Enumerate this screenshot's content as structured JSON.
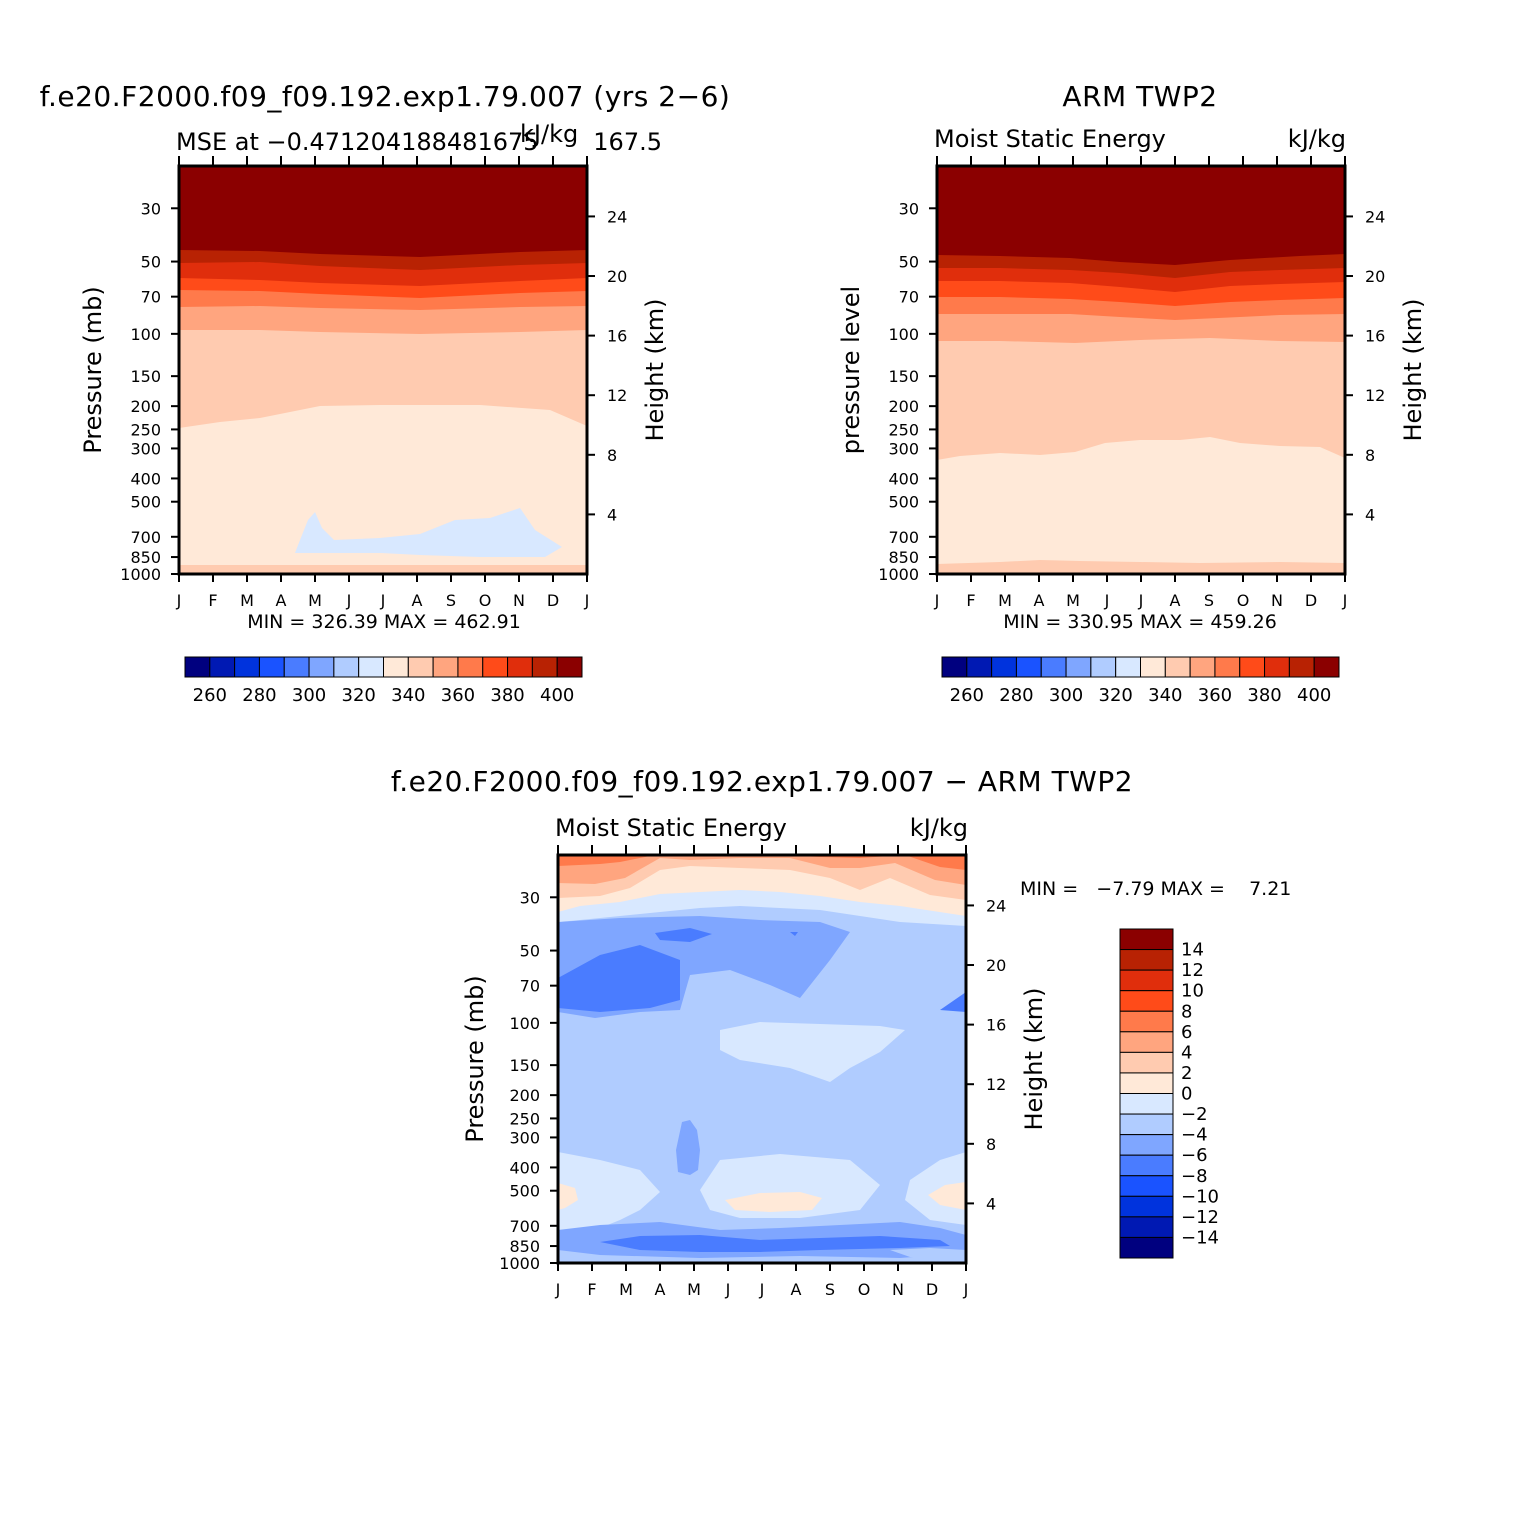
{
  "panels": [
    {
      "id": "model",
      "title": "f.e20.F2000.f09_f09.192.exp1.79.007 (yrs 2−6)",
      "subtitle_left": "MSE at −0.471204188481675",
      "subtitle_overlap": "kJ/kg",
      "subtitle_right": "167.5",
      "ylabel": "Pressure (mb)",
      "y2label": "Height (km)",
      "minmax_text": "MIN = 326.39 MAX = 462.91"
    },
    {
      "id": "obs",
      "title": "ARM TWP2",
      "subtitle_left": "Moist Static Energy",
      "subtitle_right": "kJ/kg",
      "ylabel": "pressure level",
      "y2label": "Height (km)",
      "minmax_text": "MIN = 330.95 MAX = 459.26"
    },
    {
      "id": "diff",
      "title": "f.e20.F2000.f09_f09.192.exp1.79.007 − ARM TWP2",
      "subtitle_left": "Moist Static Energy",
      "subtitle_right": "kJ/kg",
      "ylabel": "Pressure (mb)",
      "y2label": "Height (km)",
      "minmax_text": "MIN =   −7.79 MAX =    7.21"
    }
  ],
  "chart_data": [
    {
      "type": "heatmap",
      "name": "model",
      "x": [
        "J",
        "F",
        "M",
        "A",
        "M",
        "J",
        "J",
        "A",
        "S",
        "O",
        "N",
        "D",
        "J"
      ],
      "y_pressure_ticks": [
        30,
        50,
        70,
        100,
        150,
        200,
        250,
        300,
        400,
        500,
        700,
        850,
        1000
      ],
      "y_height_ticks_km": [
        4,
        8,
        12,
        16,
        20,
        24
      ],
      "ylim_mb": [
        20,
        1000
      ],
      "contour_levels": [
        255,
        260,
        265,
        270,
        275,
        280,
        285,
        290,
        295,
        300,
        305,
        310,
        315,
        320,
        325,
        330,
        335,
        340,
        345,
        350,
        355,
        360,
        365,
        370,
        375,
        380,
        385,
        390,
        395,
        400,
        405
      ],
      "colorbar_labels": [
        "260",
        "280",
        "300",
        "320",
        "340",
        "360",
        "380",
        "400"
      ],
      "colorbar_colors": [
        "#00007f",
        "#0019b3",
        "#0033dd",
        "#1a53ff",
        "#4a7cff",
        "#7fa6ff",
        "#b0ccff",
        "#d8e8ff",
        "#ffe9d8",
        "#ffcbb0",
        "#ffa57f",
        "#ff7a4b",
        "#ff4b19",
        "#e02e0c",
        "#b82203",
        "#8b0000"
      ],
      "min": 326.39,
      "max": 462.91
    },
    {
      "type": "heatmap",
      "name": "obs",
      "x": [
        "J",
        "F",
        "M",
        "A",
        "M",
        "J",
        "J",
        "A",
        "S",
        "O",
        "N",
        "D",
        "J"
      ],
      "y_pressure_ticks": [
        30,
        50,
        70,
        100,
        150,
        200,
        250,
        300,
        400,
        500,
        700,
        850,
        1000
      ],
      "y_height_ticks_km": [
        4,
        8,
        12,
        16,
        20,
        24
      ],
      "ylim_mb": [
        20,
        1000
      ],
      "colorbar_labels": [
        "260",
        "280",
        "300",
        "320",
        "340",
        "360",
        "380",
        "400"
      ],
      "colorbar_colors": [
        "#00007f",
        "#0019b3",
        "#0033dd",
        "#1a53ff",
        "#4a7cff",
        "#7fa6ff",
        "#b0ccff",
        "#d8e8ff",
        "#ffe9d8",
        "#ffcbb0",
        "#ffa57f",
        "#ff7a4b",
        "#ff4b19",
        "#e02e0c",
        "#b82203",
        "#8b0000"
      ],
      "min": 330.95,
      "max": 459.26
    },
    {
      "type": "heatmap",
      "name": "difference",
      "x": [
        "J",
        "F",
        "M",
        "A",
        "M",
        "J",
        "J",
        "A",
        "S",
        "O",
        "N",
        "D",
        "J"
      ],
      "y_pressure_ticks": [
        30,
        50,
        70,
        100,
        150,
        200,
        250,
        300,
        400,
        500,
        700,
        850,
        1000
      ],
      "y_height_ticks_km": [
        4,
        8,
        12,
        16,
        20,
        24
      ],
      "ylim_mb": [
        20,
        1000
      ],
      "colorbar_labels": [
        "14",
        "12",
        "10",
        "8",
        "6",
        "4",
        "2",
        "0",
        "−2",
        "−4",
        "−6",
        "−8",
        "−10",
        "−12",
        "−14"
      ],
      "colorbar_colors": [
        "#8b0000",
        "#b82203",
        "#e02e0c",
        "#ff4b19",
        "#ff7a4b",
        "#ffa57f",
        "#ffcbb0",
        "#ffe9d8",
        "#d8e8ff",
        "#b0ccff",
        "#7fa6ff",
        "#4a7cff",
        "#1a53ff",
        "#0033dd",
        "#0019b3",
        "#00007f"
      ],
      "min": -7.79,
      "max": 7.21
    }
  ],
  "colors": {
    "dark_red": "#8b0000",
    "red2": "#b82203",
    "red3": "#e02e0c",
    "orange": "#ff4b19",
    "salmon": "#ff7a4b",
    "light_salmon": "#ffa57f",
    "peach": "#ffcbb0",
    "cream": "#ffe9d8",
    "pale_blue": "#d8e8ff",
    "light_blue": "#b0ccff",
    "mid_blue": "#7fa6ff",
    "blue": "#4a7cff"
  }
}
